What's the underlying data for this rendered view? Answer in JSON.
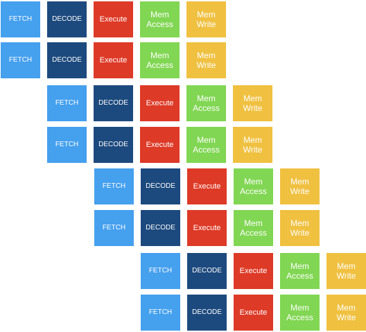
{
  "stage_colors": {
    "fetch": "#45a0ee",
    "decode": "#1d4a7e",
    "execute": "#dd3a27",
    "mem": "#81d653",
    "wb": "#f0c040"
  },
  "rows": [
    {
      "stages": [
        {
          "type": "fetch",
          "label": "FETCH"
        },
        {
          "type": "decode",
          "label": "DECODE"
        },
        {
          "type": "execute",
          "label": "Execute"
        },
        {
          "type": "mem",
          "label": "Mem\nAccess"
        },
        {
          "type": "wb",
          "label": "Mem\nWrite"
        }
      ]
    },
    {
      "stages": [
        {
          "type": "fetch",
          "label": "FETCH"
        },
        {
          "type": "decode",
          "label": "DECODE"
        },
        {
          "type": "execute",
          "label": "Execute"
        },
        {
          "type": "mem",
          "label": "Mem\nAccess"
        },
        {
          "type": "wb",
          "label": "Mem\nWrite"
        }
      ]
    },
    {
      "stages": [
        {
          "type": "fetch",
          "label": "FETCH"
        },
        {
          "type": "decode",
          "label": "DECODE"
        },
        {
          "type": "execute",
          "label": "Execute"
        },
        {
          "type": "mem",
          "label": "Mem\nAccess"
        },
        {
          "type": "wb",
          "label": "Mem\nWrite"
        }
      ]
    },
    {
      "stages": [
        {
          "type": "fetch",
          "label": "FETCH"
        },
        {
          "type": "decode",
          "label": "DECODE"
        },
        {
          "type": "execute",
          "label": "Execute"
        },
        {
          "type": "mem",
          "label": "Mem\nAccess"
        },
        {
          "type": "wb",
          "label": "Mem\nWrite"
        }
      ]
    },
    {
      "stages": [
        {
          "type": "fetch",
          "label": "FETCH"
        },
        {
          "type": "decode",
          "label": "DECODE"
        },
        {
          "type": "execute",
          "label": "Execute"
        },
        {
          "type": "mem",
          "label": "Mem\nAccess"
        },
        {
          "type": "wb",
          "label": "Mem\nWrite"
        }
      ]
    },
    {
      "stages": [
        {
          "type": "fetch",
          "label": "FETCH"
        },
        {
          "type": "decode",
          "label": "DECODE"
        },
        {
          "type": "execute",
          "label": "Execute"
        },
        {
          "type": "mem",
          "label": "Mem\nAccess"
        },
        {
          "type": "wb",
          "label": "Mem\nWrite"
        }
      ]
    },
    {
      "stages": [
        {
          "type": "fetch",
          "label": "FETCH"
        },
        {
          "type": "decode",
          "label": "DECODE"
        },
        {
          "type": "execute",
          "label": "Execute"
        },
        {
          "type": "mem",
          "label": "Mem\nAccess"
        },
        {
          "type": "wb",
          "label": "Mem\nWrite"
        }
      ]
    },
    {
      "stages": [
        {
          "type": "fetch",
          "label": "FETCH"
        },
        {
          "type": "decode",
          "label": "DECODE"
        },
        {
          "type": "execute",
          "label": "Execute"
        },
        {
          "type": "mem",
          "label": "Mem\nAccess"
        },
        {
          "type": "wb",
          "label": "Mem\nWrite"
        }
      ]
    }
  ]
}
